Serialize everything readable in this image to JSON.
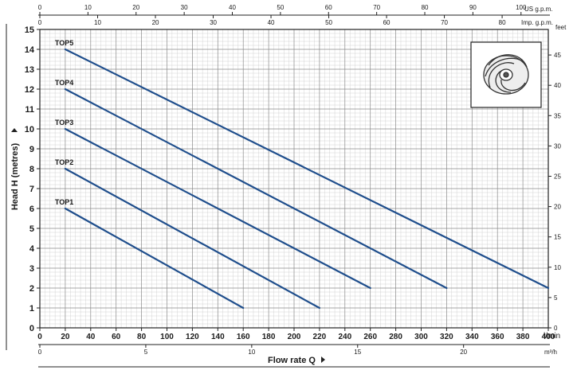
{
  "chart_data": {
    "type": "line",
    "x": {
      "label": "l/min",
      "min": 0,
      "max": 400,
      "ticks": [
        0,
        20,
        40,
        60,
        80,
        100,
        120,
        140,
        160,
        180,
        200,
        220,
        240,
        260,
        280,
        300,
        320,
        340,
        360,
        380,
        400
      ]
    },
    "y": {
      "label": "Head H (metres)",
      "min": 0,
      "max": 15,
      "ticks": [
        0,
        1,
        2,
        3,
        4,
        5,
        6,
        7,
        8,
        9,
        10,
        11,
        12,
        13,
        14,
        15
      ]
    },
    "y_right": {
      "unit": "feet",
      "ticks": [
        0,
        5,
        10,
        15,
        20,
        25,
        30,
        35,
        40,
        45
      ]
    },
    "x_top_us": {
      "unit": "US g.p.m.",
      "ticks": [
        0,
        10,
        20,
        30,
        40,
        50,
        60,
        70,
        80,
        90,
        100
      ]
    },
    "x_top_imp": {
      "unit": "Imp. g.p.m.",
      "ticks": [
        0,
        10,
        20,
        30,
        40,
        50,
        60,
        70,
        80
      ]
    },
    "x_bottom_m3h": {
      "unit": "m³/h",
      "ticks": [
        0,
        5,
        10,
        15,
        20
      ]
    },
    "xlabel": "Flow rate  Q",
    "grid": true,
    "series": [
      {
        "name": "TOP5",
        "x": [
          20,
          400
        ],
        "y": [
          14,
          2
        ],
        "color": "#1f4e8c"
      },
      {
        "name": "TOP4",
        "x": [
          20,
          320
        ],
        "y": [
          12,
          2
        ],
        "color": "#1f4e8c"
      },
      {
        "name": "TOP3",
        "x": [
          20,
          260
        ],
        "y": [
          10,
          2
        ],
        "color": "#1f4e8c"
      },
      {
        "name": "TOP2",
        "x": [
          20,
          220
        ],
        "y": [
          8,
          1
        ],
        "color": "#1f4e8c"
      },
      {
        "name": "TOP1",
        "x": [
          20,
          160
        ],
        "y": [
          6,
          1
        ],
        "color": "#1f4e8c"
      }
    ],
    "inset": "impeller-icon"
  }
}
